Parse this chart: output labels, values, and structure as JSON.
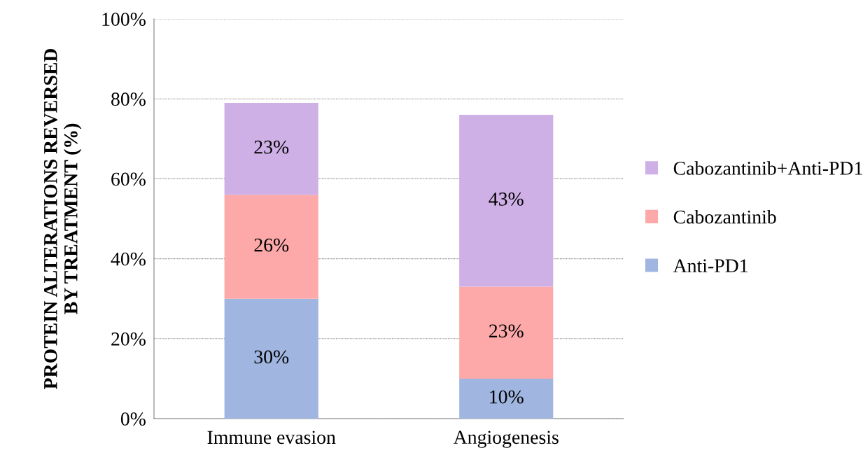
{
  "chart_data": {
    "type": "bar",
    "stacked": true,
    "ylabel": "PROTEIN ALTERATIONS REVERSED\nBY TREATMENT (%)",
    "categories": [
      "Immune evasion",
      "Angiogenesis"
    ],
    "series": [
      {
        "name": "Anti-PD1",
        "color": "#a0b5df",
        "values": [
          30,
          10
        ],
        "value_labels": [
          "30%",
          "10%"
        ]
      },
      {
        "name": "Cabozantinib",
        "color": "#fda9a9",
        "values": [
          26,
          23
        ],
        "value_labels": [
          "26%",
          "23%"
        ]
      },
      {
        "name": "Cabozantinib+Anti-PD1",
        "color": "#cfb0e6",
        "values": [
          23,
          43
        ],
        "value_labels": [
          "23%",
          "43%"
        ]
      }
    ],
    "ylim": [
      0,
      100
    ],
    "yticks": [
      {
        "value": 0,
        "label": "0%"
      },
      {
        "value": 20,
        "label": "20%"
      },
      {
        "value": 40,
        "label": "40%"
      },
      {
        "value": 60,
        "label": "60%"
      },
      {
        "value": 80,
        "label": "80%"
      },
      {
        "value": 100,
        "label": "100%"
      }
    ],
    "grid": "y",
    "legend": "right"
  }
}
